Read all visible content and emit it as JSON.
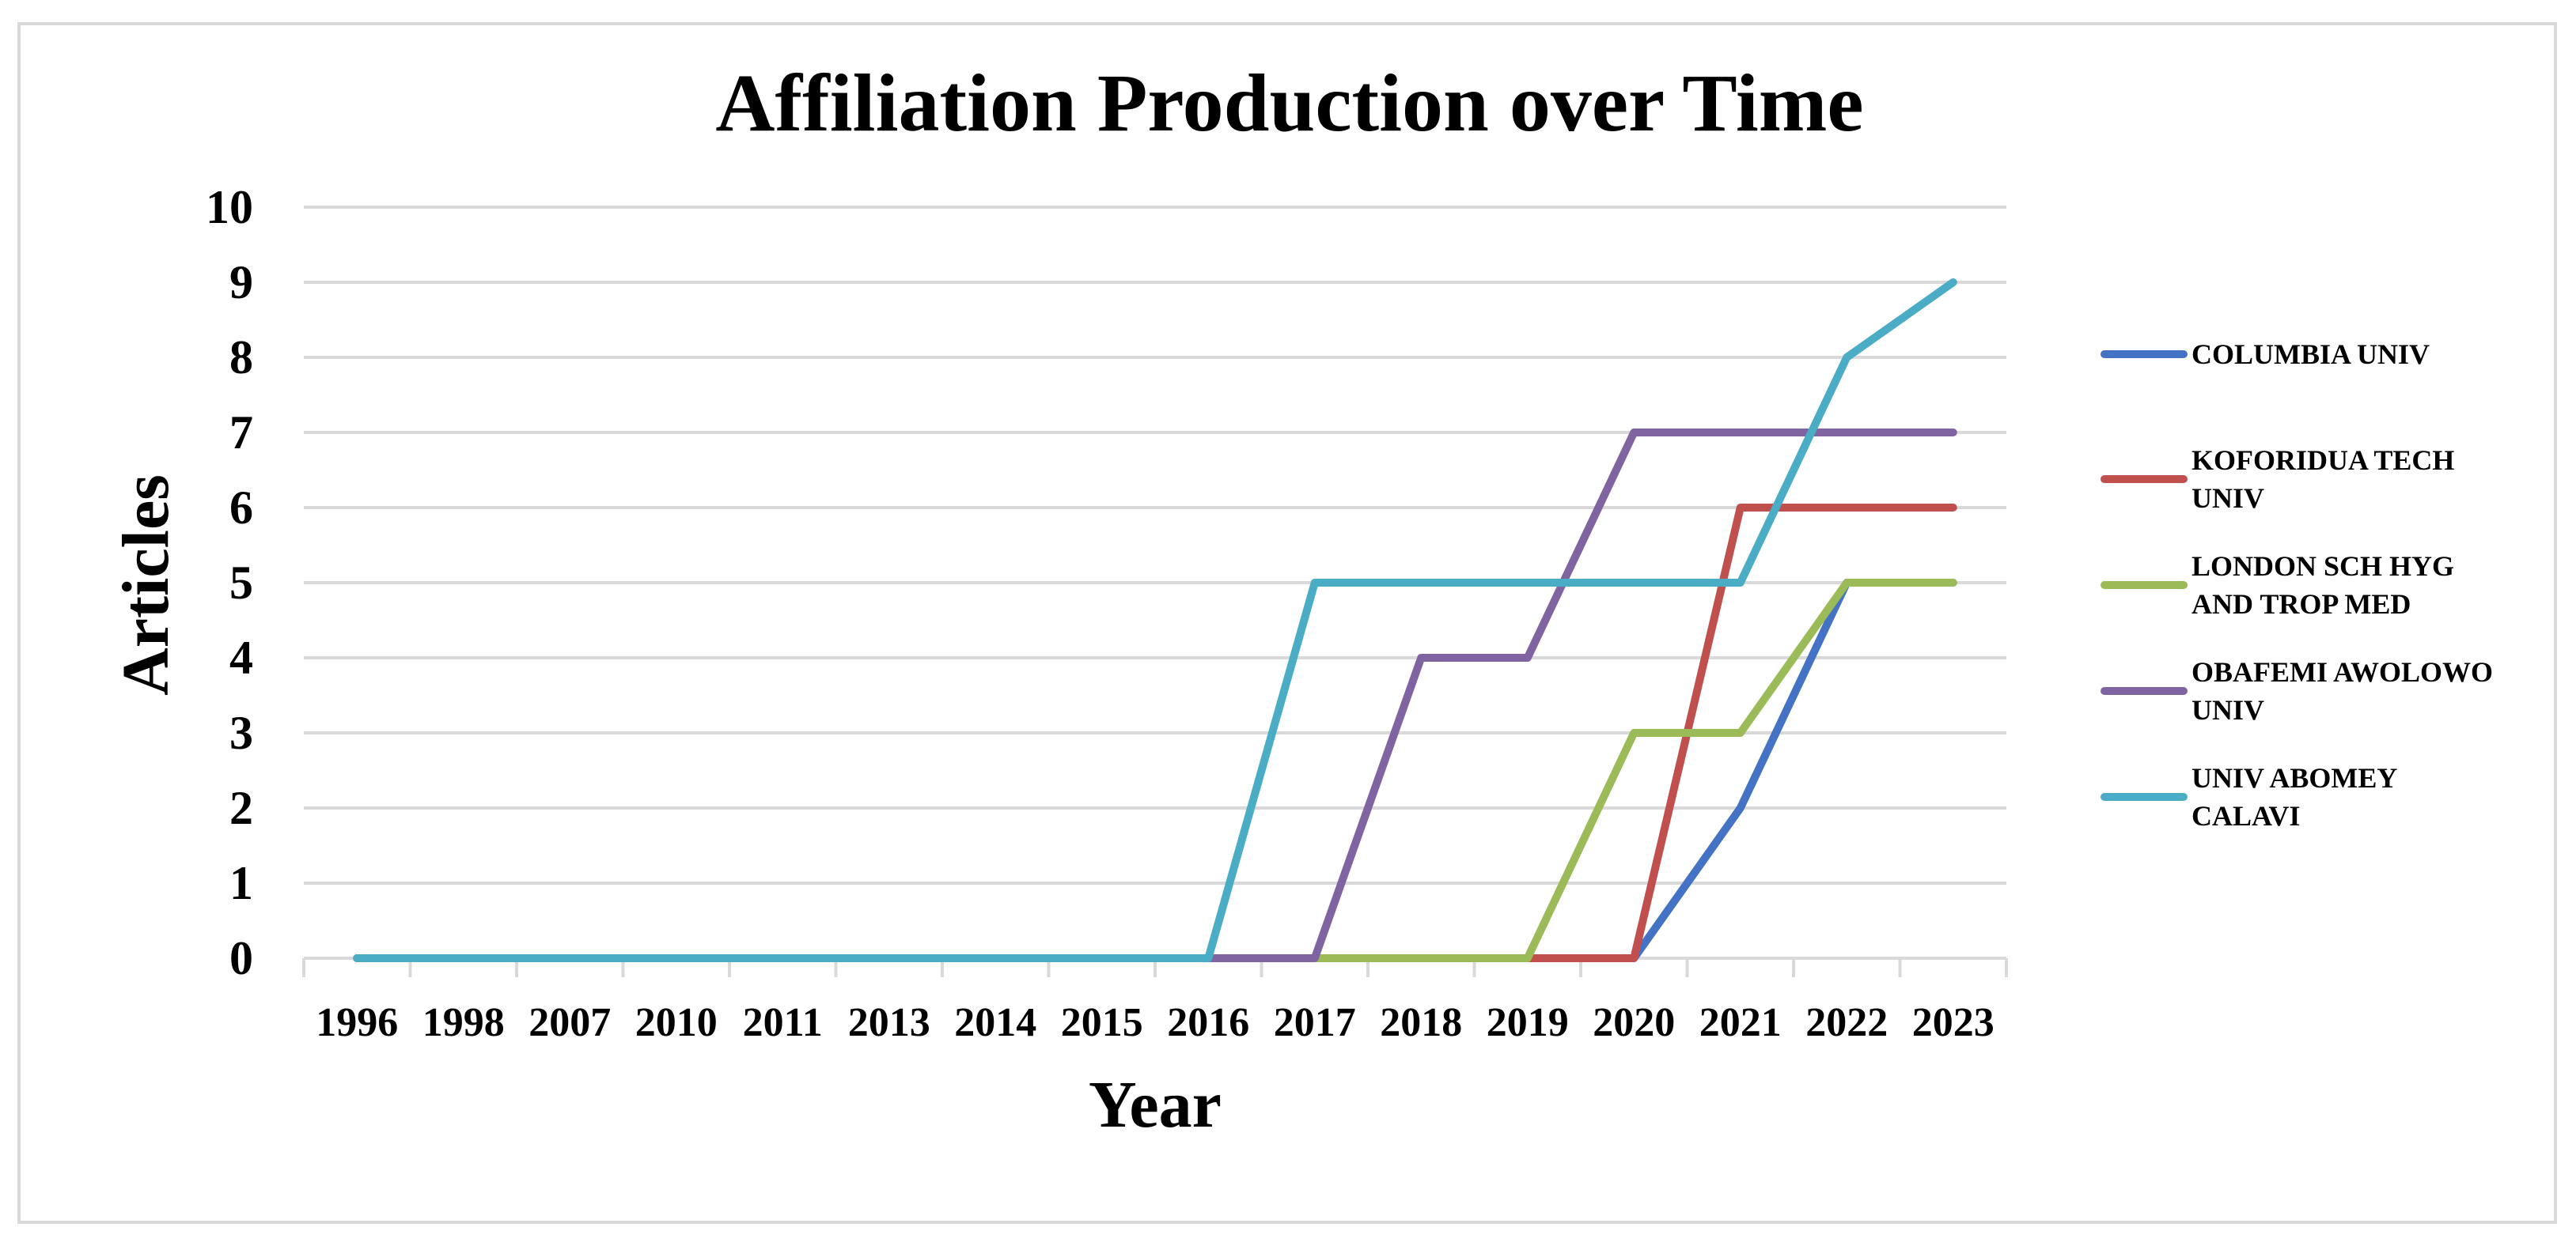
{
  "chart_data": {
    "type": "line",
    "title": "Affiliation Production over Time",
    "xlabel": "Year",
    "ylabel": "Articles",
    "x": [
      "1996",
      "1998",
      "2007",
      "2010",
      "2011",
      "2013",
      "2014",
      "2015",
      "2016",
      "2017",
      "2018",
      "2019",
      "2020",
      "2021",
      "2022",
      "2023"
    ],
    "ylim": [
      0,
      10
    ],
    "yticks": [
      "0",
      "1",
      "2",
      "3",
      "4",
      "5",
      "6",
      "7",
      "8",
      "9",
      "10"
    ],
    "grid": true,
    "legend_position": "right",
    "series": [
      {
        "name": "COLUMBIA UNIV",
        "legend_lines": [
          "COLUMBIA UNIV"
        ],
        "color": "#4472C4",
        "values": [
          0,
          0,
          0,
          0,
          0,
          0,
          0,
          0,
          0,
          0,
          0,
          0,
          0,
          2,
          5,
          5
        ]
      },
      {
        "name": "KOFORIDUA TECH UNIV",
        "legend_lines": [
          "KOFORIDUA TECH",
          "UNIV"
        ],
        "color": "#C0504D",
        "values": [
          0,
          0,
          0,
          0,
          0,
          0,
          0,
          0,
          0,
          0,
          0,
          0,
          0,
          6,
          6,
          6
        ]
      },
      {
        "name": "LONDON SCH HYG AND TROP MED",
        "legend_lines": [
          "LONDON SCH HYG",
          "AND TROP MED"
        ],
        "color": "#9BBB59",
        "values": [
          0,
          0,
          0,
          0,
          0,
          0,
          0,
          0,
          0,
          0,
          0,
          0,
          3,
          3,
          5,
          5
        ]
      },
      {
        "name": "OBAFEMI AWOLOWO UNIV",
        "legend_lines": [
          "OBAFEMI AWOLOWO",
          "UNIV"
        ],
        "color": "#8064A2",
        "values": [
          0,
          0,
          0,
          0,
          0,
          0,
          0,
          0,
          0,
          0,
          4,
          4,
          7,
          7,
          7,
          7
        ]
      },
      {
        "name": "UNIV ABOMEY CALAVI",
        "legend_lines": [
          "UNIV ABOMEY",
          "CALAVI"
        ],
        "color": "#4BACC6",
        "values": [
          0,
          0,
          0,
          0,
          0,
          0,
          0,
          0,
          0,
          5,
          5,
          5,
          5,
          5,
          8,
          9
        ]
      }
    ]
  }
}
